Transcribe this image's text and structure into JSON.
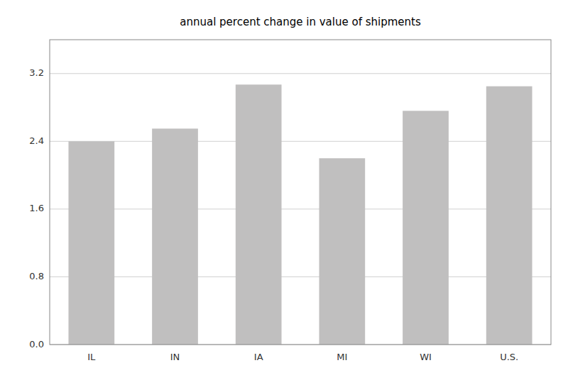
{
  "chart_data": {
    "type": "bar",
    "title": "annual percent change in value of shipments",
    "categories": [
      "IL",
      "IN",
      "IA",
      "MI",
      "WI",
      "U.S."
    ],
    "values": [
      2.4,
      2.55,
      3.07,
      2.2,
      2.76,
      3.05
    ],
    "color": "#c0bfbf",
    "ylim": [
      0.0,
      3.6
    ],
    "yticks": [
      {
        "value": 0.0,
        "label": "0.0"
      },
      0.8,
      1.6,
      2.4,
      3.2
    ],
    "grid": true
  }
}
